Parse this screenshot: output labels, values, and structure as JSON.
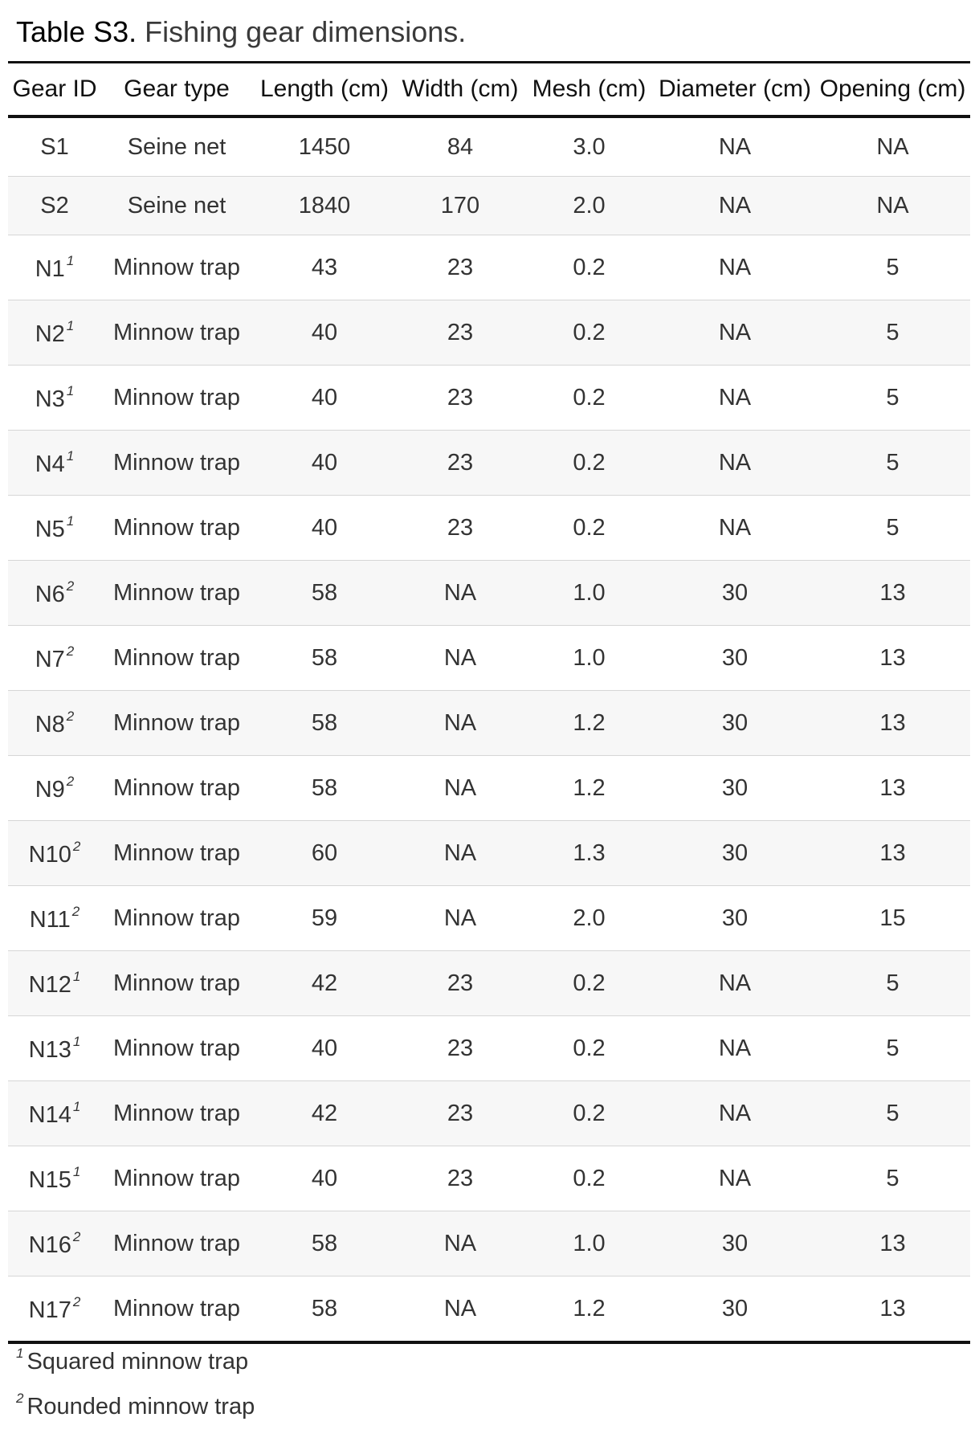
{
  "caption": {
    "label": "Table S3.",
    "text": " Fishing gear dimensions."
  },
  "headers": [
    "Gear ID",
    "Gear type",
    "Length (cm)",
    "Width (cm)",
    "Mesh (cm)",
    "Diameter (cm)",
    "Opening (cm)"
  ],
  "rows": [
    {
      "id": "S1",
      "fn": "",
      "type": "Seine net",
      "length": "1450",
      "width": "84",
      "mesh": "3.0",
      "diameter": "NA",
      "opening": "NA"
    },
    {
      "id": "S2",
      "fn": "",
      "type": "Seine net",
      "length": "1840",
      "width": "170",
      "mesh": "2.0",
      "diameter": "NA",
      "opening": "NA"
    },
    {
      "id": "N1",
      "fn": "1",
      "type": "Minnow trap",
      "length": "43",
      "width": "23",
      "mesh": "0.2",
      "diameter": "NA",
      "opening": "5"
    },
    {
      "id": "N2",
      "fn": "1",
      "type": "Minnow trap",
      "length": "40",
      "width": "23",
      "mesh": "0.2",
      "diameter": "NA",
      "opening": "5"
    },
    {
      "id": "N3",
      "fn": "1",
      "type": "Minnow trap",
      "length": "40",
      "width": "23",
      "mesh": "0.2",
      "diameter": "NA",
      "opening": "5"
    },
    {
      "id": "N4",
      "fn": "1",
      "type": "Minnow trap",
      "length": "40",
      "width": "23",
      "mesh": "0.2",
      "diameter": "NA",
      "opening": "5"
    },
    {
      "id": "N5",
      "fn": "1",
      "type": "Minnow trap",
      "length": "40",
      "width": "23",
      "mesh": "0.2",
      "diameter": "NA",
      "opening": "5"
    },
    {
      "id": "N6",
      "fn": "2",
      "type": "Minnow trap",
      "length": "58",
      "width": "NA",
      "mesh": "1.0",
      "diameter": "30",
      "opening": "13"
    },
    {
      "id": "N7",
      "fn": "2",
      "type": "Minnow trap",
      "length": "58",
      "width": "NA",
      "mesh": "1.0",
      "diameter": "30",
      "opening": "13"
    },
    {
      "id": "N8",
      "fn": "2",
      "type": "Minnow trap",
      "length": "58",
      "width": "NA",
      "mesh": "1.2",
      "diameter": "30",
      "opening": "13"
    },
    {
      "id": "N9",
      "fn": "2",
      "type": "Minnow trap",
      "length": "58",
      "width": "NA",
      "mesh": "1.2",
      "diameter": "30",
      "opening": "13"
    },
    {
      "id": "N10",
      "fn": "2",
      "type": "Minnow trap",
      "length": "60",
      "width": "NA",
      "mesh": "1.3",
      "diameter": "30",
      "opening": "13"
    },
    {
      "id": "N11",
      "fn": "2",
      "type": "Minnow trap",
      "length": "59",
      "width": "NA",
      "mesh": "2.0",
      "diameter": "30",
      "opening": "15"
    },
    {
      "id": "N12",
      "fn": "1",
      "type": "Minnow trap",
      "length": "42",
      "width": "23",
      "mesh": "0.2",
      "diameter": "NA",
      "opening": "5"
    },
    {
      "id": "N13",
      "fn": "1",
      "type": "Minnow trap",
      "length": "40",
      "width": "23",
      "mesh": "0.2",
      "diameter": "NA",
      "opening": "5"
    },
    {
      "id": "N14",
      "fn": "1",
      "type": "Minnow trap",
      "length": "42",
      "width": "23",
      "mesh": "0.2",
      "diameter": "NA",
      "opening": "5"
    },
    {
      "id": "N15",
      "fn": "1",
      "type": "Minnow trap",
      "length": "40",
      "width": "23",
      "mesh": "0.2",
      "diameter": "NA",
      "opening": "5"
    },
    {
      "id": "N16",
      "fn": "2",
      "type": "Minnow trap",
      "length": "58",
      "width": "NA",
      "mesh": "1.0",
      "diameter": "30",
      "opening": "13"
    },
    {
      "id": "N17",
      "fn": "2",
      "type": "Minnow trap",
      "length": "58",
      "width": "NA",
      "mesh": "1.2",
      "diameter": "30",
      "opening": "13"
    }
  ],
  "footnotes": [
    {
      "mark": "1",
      "text": "Squared minnow trap"
    },
    {
      "mark": "2",
      "text": "Rounded minnow trap"
    }
  ]
}
